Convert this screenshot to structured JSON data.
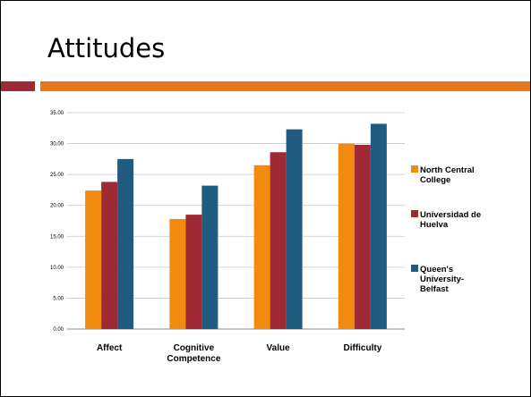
{
  "slide": {
    "title": "Attitudes",
    "accent_dark": "#9E2A35",
    "accent_light": "#E8761B"
  },
  "chart_data": {
    "type": "bar",
    "title": "",
    "xlabel": "",
    "ylabel": "",
    "ylim": [
      0,
      35
    ],
    "yticks": [
      "0.00",
      "5.00",
      "10.00",
      "15.00",
      "20.00",
      "25.00",
      "30.00",
      "35.00"
    ],
    "grid": true,
    "legend_position": "right",
    "categories": [
      [
        "Affect"
      ],
      [
        "Cognitive",
        "Competence"
      ],
      [
        "Value"
      ],
      [
        "Difficulty"
      ]
    ],
    "series": [
      {
        "name": [
          "North Central",
          "College"
        ],
        "color": "#F28A10",
        "values": [
          22.4,
          17.8,
          26.5,
          30.0
        ]
      },
      {
        "name": [
          "Universidad de",
          "Huelva"
        ],
        "color": "#9E2A35",
        "values": [
          23.8,
          18.5,
          28.6,
          29.8
        ]
      },
      {
        "name": [
          "Queen's",
          "University-",
          "Belfast"
        ],
        "color": "#1F5C7F",
        "values": [
          27.5,
          23.2,
          32.3,
          33.2
        ]
      }
    ]
  }
}
